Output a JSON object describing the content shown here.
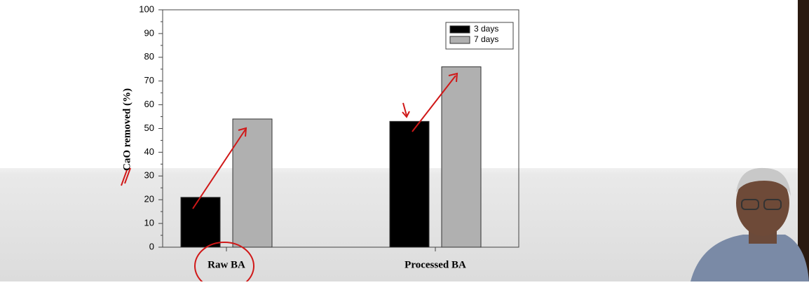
{
  "chart_data": {
    "type": "bar",
    "ylabel": "CaO removed (%)",
    "categories": [
      "Raw BA",
      "Processed BA"
    ],
    "series": [
      {
        "name": "3 days",
        "color": "#000000",
        "values": [
          21,
          53
        ]
      },
      {
        "name": "7 days",
        "color": "#b0b0b0",
        "values": [
          54,
          76
        ]
      }
    ],
    "ylim": [
      0,
      100
    ],
    "yticks": [
      0,
      10,
      20,
      30,
      40,
      50,
      60,
      70,
      80,
      90,
      100
    ],
    "legend": "upper right"
  }
}
